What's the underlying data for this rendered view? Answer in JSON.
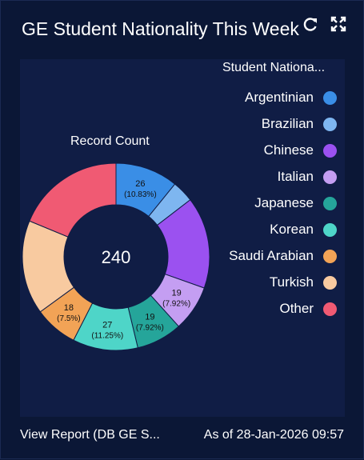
{
  "card": {
    "title": "GE Student Nationality This Week",
    "refresh_icon": "refresh-icon",
    "expand_icon": "expand-icon"
  },
  "chart_data": {
    "type": "pie",
    "title": "Record Count",
    "total": "240",
    "legend_title": "Student Nationa...",
    "legend_position": "right",
    "series": [
      {
        "name": "Argentinian",
        "value": 26,
        "color": "#3a8ee6",
        "label": "26",
        "pct": "(10.83%)"
      },
      {
        "name": "Brazilian",
        "value": 9,
        "color": "#7eb6f0",
        "label": "",
        "pct": ""
      },
      {
        "name": "Chinese",
        "value": 38,
        "color": "#9b51f0",
        "label": "",
        "pct": ""
      },
      {
        "name": "Italian",
        "value": 19,
        "color": "#c49ef2",
        "label": "19",
        "pct": "(7.92%)"
      },
      {
        "name": "Japanese",
        "value": 19,
        "color": "#25a59a",
        "label": "19",
        "pct": "(7.92%)"
      },
      {
        "name": "Korean",
        "value": 27,
        "color": "#4ed5c8",
        "label": "27",
        "pct": "(11.25%)"
      },
      {
        "name": "Saudi Arabian",
        "value": 18,
        "color": "#f2a356",
        "label": "18",
        "pct": "(7.5%)"
      },
      {
        "name": "Turkish",
        "value": 39,
        "color": "#f8caa0",
        "label": "",
        "pct": ""
      },
      {
        "name": "Other",
        "value": 45,
        "color": "#f05a73",
        "label": "",
        "pct": ""
      }
    ]
  },
  "footer": {
    "view_report": "View Report (DB GE S...",
    "as_of": "As of 28-Jan-2026 09:57"
  }
}
